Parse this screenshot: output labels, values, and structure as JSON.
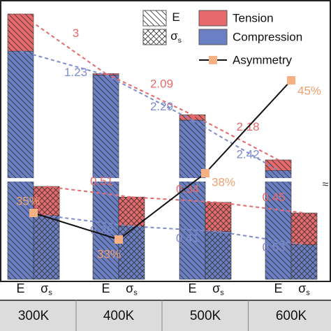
{
  "chart_data": {
    "type": "bar",
    "categories": [
      "300K",
      "400K",
      "500K",
      "600K"
    ],
    "measures": [
      {
        "name": "E"
      },
      {
        "name": "σ",
        "sub": "s"
      }
    ],
    "ylim": [
      0,
      100
    ],
    "y2lim": [
      30,
      50
    ],
    "series": [
      {
        "name": "Compression",
        "color": "#6b7fc4",
        "E": [
          86,
          77,
          60,
          41
        ],
        "sigma": [
          24,
          20,
          18,
          13
        ]
      },
      {
        "name": "Tension",
        "color": "#e8696b",
        "E": [
          14,
          0.5,
          2,
          4
        ],
        "sigma": [
          11,
          11,
          11,
          12
        ]
      }
    ],
    "asymmetry": {
      "name": "Asymmetry",
      "color": "#f5b183",
      "axis": "y2",
      "values": [
        35,
        33,
        38,
        45
      ],
      "value_labels": [
        "35%",
        "33%",
        "38%",
        "45%"
      ]
    },
    "ratios": {
      "E": {
        "Tension": [
          3,
          2.09,
          2.18
        ],
        "Compression": [
          1.23,
          2.29,
          2.42
        ]
      },
      "sigma": {
        "Tension": [
          0.51,
          0.34,
          0.45
        ],
        "Compression": [
          0.28,
          0.41,
          0.53
        ]
      }
    }
  }
}
